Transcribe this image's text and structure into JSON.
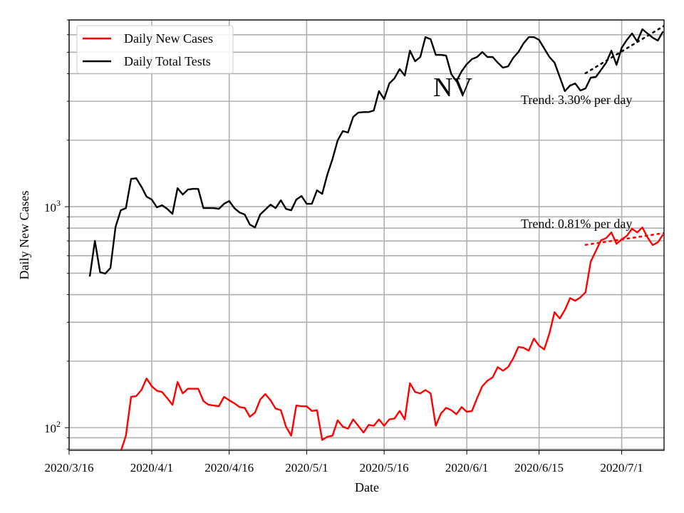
{
  "chart_data": {
    "type": "line",
    "title": "",
    "xlabel": "Date",
    "ylabel": "Daily New Cases",
    "yscale": "log",
    "ylim": [
      79,
      7000
    ],
    "xlim": [
      "2020/3/16",
      "2020/7/9"
    ],
    "grid": "major x, major+minor y",
    "legend_placement": "top-left",
    "annotation": "NV",
    "x_ticks": [
      "2020/3/16",
      "2020/4/1",
      "2020/4/16",
      "2020/5/1",
      "2020/5/16",
      "2020/6/1",
      "2020/6/15",
      "2020/7/1"
    ],
    "y_ticks": [
      {
        "value": 100,
        "base": "10",
        "exp": "2"
      },
      {
        "value": 1000,
        "base": "10",
        "exp": "3"
      }
    ],
    "series": [
      {
        "name": "Daily New Cases",
        "color": "#ff0000",
        "start_date": "2020/3/26",
        "values": [
          78,
          92,
          138,
          139,
          148,
          167,
          154,
          147,
          145,
          136,
          127,
          161,
          143,
          150,
          150,
          150,
          132,
          127,
          126,
          125,
          138,
          133,
          129,
          124,
          123,
          112,
          117,
          134,
          142,
          133,
          122,
          120,
          101,
          92,
          126,
          125,
          125,
          119,
          120,
          88,
          91,
          92,
          108,
          101,
          99,
          109,
          102,
          95,
          103,
          102,
          109,
          102,
          109,
          110,
          119,
          109,
          159,
          145,
          143,
          148,
          143,
          102,
          116,
          123,
          120,
          115,
          124,
          118,
          119,
          136,
          154,
          163,
          169,
          188,
          181,
          188,
          206,
          232,
          230,
          223,
          253,
          235,
          226,
          267,
          333,
          312,
          341,
          386,
          375,
          389,
          410,
          564,
          631,
          705,
          721,
          765,
          679,
          711,
          738,
          795,
          765,
          806,
          726,
          670,
          690,
          748
        ]
      },
      {
        "name": "Daily Total Tests",
        "color": "#000000",
        "start_date": "2020/3/20",
        "values": [
          483,
          700,
          505,
          498,
          528,
          812,
          963,
          985,
          1336,
          1345,
          1231,
          1110,
          1077,
          993,
          1015,
          978,
          928,
          1213,
          1135,
          1195,
          1204,
          1204,
          985,
          985,
          985,
          978,
          1030,
          1061,
          985,
          942,
          922,
          830,
          806,
          922,
          971,
          1022,
          985,
          1069,
          978,
          963,
          1077,
          1118,
          1030,
          1030,
          1186,
          1143,
          1397,
          1645,
          1995,
          2198,
          2166,
          2548,
          2665,
          2680,
          2680,
          2725,
          3333,
          3070,
          3613,
          3808,
          4195,
          3924,
          5083,
          4550,
          4757,
          5855,
          5728,
          4866,
          4866,
          4830,
          3981,
          3694,
          4101,
          4416,
          4654,
          4757,
          5012,
          4757,
          4757,
          4487,
          4256,
          4318,
          4721,
          5012,
          5483,
          5855,
          5855,
          5688,
          5200,
          4757,
          4487,
          3865,
          3333,
          3534,
          3613,
          3357,
          3430,
          3837,
          3865,
          4159,
          4487,
          5083,
          4385,
          5240,
          5688,
          6081,
          5600,
          6355,
          6081,
          5820,
          5650,
          6210
        ]
      }
    ],
    "trends": [
      {
        "series": "Daily Total Tests",
        "color": "#000000",
        "start_date": "2020/6/24",
        "end_date": "2020/7/9",
        "start_value": 4018,
        "rate_per_day": 0.033,
        "label": "Trend: 3.30% per day"
      },
      {
        "series": "Daily New Cases",
        "color": "#ff0000",
        "start_date": "2020/6/24",
        "end_date": "2020/7/9",
        "start_value": 672,
        "rate_per_day": 0.0081,
        "label": "Trend: 0.81% per day"
      }
    ]
  }
}
